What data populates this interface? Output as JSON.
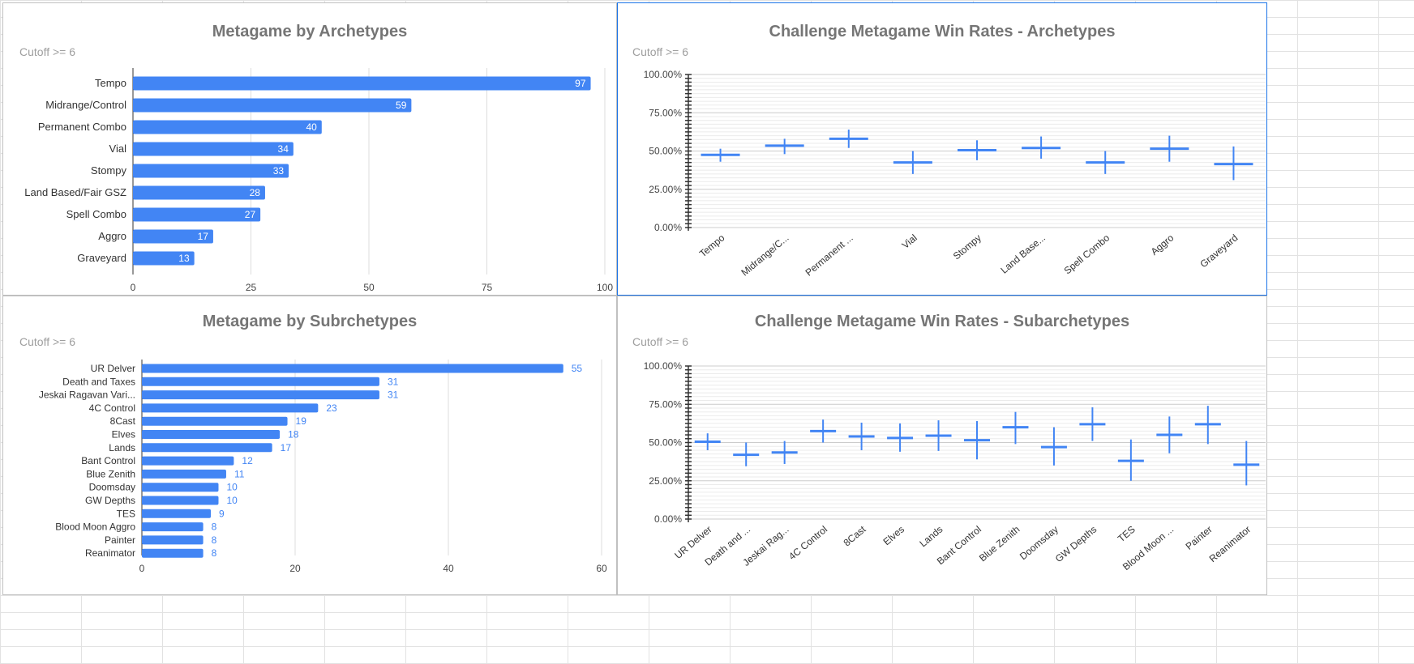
{
  "chart_data": [
    {
      "type": "bar",
      "title": "Metagame by Archetypes",
      "subtitle": "Cutoff >= 6",
      "orientation": "horizontal",
      "categories": [
        "Tempo",
        "Midrange/Control",
        "Permanent Combo",
        "Vial",
        "Stompy",
        "Land Based/Fair GSZ",
        "Spell Combo",
        "Aggro",
        "Graveyard"
      ],
      "values": [
        97,
        59,
        40,
        34,
        33,
        28,
        27,
        17,
        13
      ],
      "xlim": [
        0,
        100
      ],
      "xticks": [
        "0",
        "25",
        "50",
        "75",
        "100"
      ],
      "labels_inside": true,
      "color": "#4285f4"
    },
    {
      "type": "candlestick",
      "title": "Challenge Metagame Win Rates - Archetypes",
      "subtitle": "Cutoff >= 6",
      "categories": [
        "Tempo",
        "Midrange/C...",
        "Permanent ...",
        "Vial",
        "Stompy",
        "Land Base...",
        "Spell Combo",
        "Aggro",
        "Graveyard"
      ],
      "values": [
        47.5,
        53.5,
        58,
        42.5,
        50.5,
        52,
        42.5,
        51.5,
        41.5
      ],
      "low": [
        43,
        48,
        52,
        35,
        44,
        45,
        35,
        43,
        31
      ],
      "high": [
        51.5,
        58,
        64,
        50,
        57,
        59.5,
        50,
        60,
        53
      ],
      "ylim": [
        0,
        100
      ],
      "yticks": [
        "0.00%",
        "25.00%",
        "50.00%",
        "75.00%",
        "100.00%"
      ],
      "color": "#4285f4"
    },
    {
      "type": "bar",
      "title": "Metagame by Subrchetypes",
      "subtitle": "Cutoff >= 6",
      "orientation": "horizontal",
      "categories": [
        "UR Delver",
        "Death and Taxes",
        "Jeskai Ragavan Vari...",
        "4C Control",
        "8Cast",
        "Elves",
        "Lands",
        "Bant Control",
        "Blue Zenith",
        "Doomsday",
        "GW Depths",
        "TES",
        "Blood Moon Aggro",
        "Painter",
        "Reanimator"
      ],
      "values": [
        55,
        31,
        31,
        23,
        19,
        18,
        17,
        12,
        11,
        10,
        10,
        9,
        8,
        8,
        8
      ],
      "xlim": [
        0,
        60
      ],
      "xticks": [
        "0",
        "20",
        "40",
        "60"
      ],
      "labels_inside": false,
      "color": "#4285f4"
    },
    {
      "type": "candlestick",
      "title": "Challenge Metagame Win Rates - Subarchetypes",
      "subtitle": "Cutoff >= 6",
      "categories": [
        "UR Delver",
        "Death and ...",
        "Jeskai Rag...",
        "4C Control",
        "8Cast",
        "Elves",
        "Lands",
        "Bant Control",
        "Blue Zenith",
        "Doomsday",
        "GW Depths",
        "TES",
        "Blood Moon ...",
        "Painter",
        "Reanimator"
      ],
      "values": [
        50.5,
        42,
        43.5,
        57.5,
        54,
        53,
        54.5,
        51.5,
        60,
        47,
        62,
        38,
        55,
        62,
        35.5
      ],
      "low": [
        45,
        34.5,
        36,
        50,
        45,
        44,
        44.5,
        39,
        49,
        35,
        51,
        25,
        43,
        49,
        22
      ],
      "high": [
        56,
        50,
        51,
        65,
        63,
        62.5,
        64.5,
        64,
        70,
        60,
        73,
        52,
        67,
        74,
        51
      ],
      "ylim": [
        0,
        100
      ],
      "yticks": [
        "0.00%",
        "25.00%",
        "50.00%",
        "75.00%",
        "100.00%"
      ],
      "color": "#4285f4"
    }
  ]
}
